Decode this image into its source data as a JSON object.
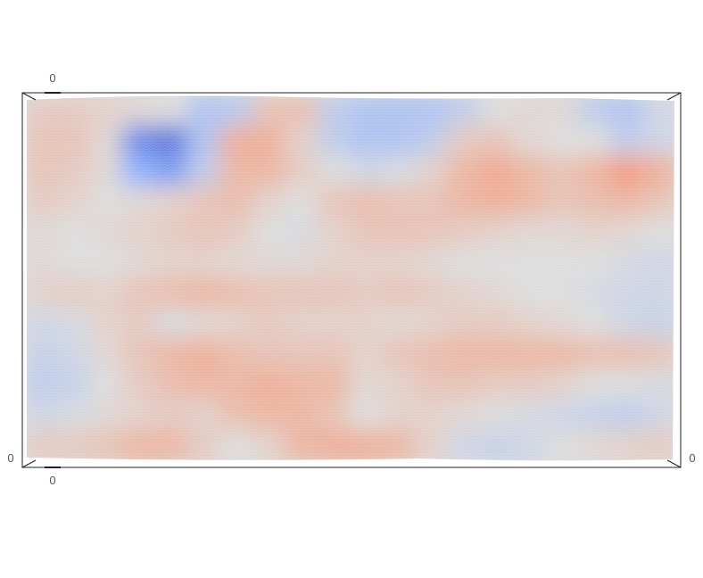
{
  "chart_data": {
    "type": "heatmap",
    "title": "",
    "colormap": "coolwarm",
    "colormap_stops": [
      "#3b4cc0",
      "#8db0fe",
      "#dddddd",
      "#f49a7b",
      "#b40426"
    ],
    "grid": false,
    "legend": "none",
    "projection": "3d-box",
    "tick_labels": {
      "top": "0",
      "bottom": "0",
      "left": "0",
      "right": "0"
    },
    "rows": 12,
    "cols": 20,
    "value_range": [
      -1,
      1
    ],
    "values": [
      [
        0.15,
        0.15,
        0.1,
        0.05,
        0.0,
        -0.3,
        -0.25,
        0.2,
        0.25,
        -0.2,
        -0.3,
        -0.3,
        -0.3,
        -0.2,
        0.0,
        0.05,
        0.05,
        -0.2,
        -0.3,
        -0.1
      ],
      [
        0.2,
        0.2,
        0.05,
        -0.7,
        -0.8,
        -0.3,
        0.35,
        0.35,
        0.1,
        -0.2,
        -0.3,
        -0.3,
        -0.2,
        0.15,
        0.2,
        0.05,
        0.0,
        0.0,
        -0.2,
        -0.1
      ],
      [
        0.2,
        0.15,
        0.05,
        -0.5,
        -0.6,
        -0.2,
        0.3,
        0.3,
        0.15,
        0.0,
        -0.1,
        -0.05,
        0.1,
        0.3,
        0.4,
        0.3,
        0.2,
        0.3,
        0.5,
        0.35
      ],
      [
        0.15,
        0.1,
        0.0,
        0.05,
        0.1,
        0.2,
        0.25,
        0.1,
        0.0,
        0.2,
        0.25,
        0.2,
        0.2,
        0.3,
        0.35,
        0.3,
        0.2,
        0.25,
        0.3,
        0.2
      ],
      [
        0.05,
        0.0,
        0.05,
        0.1,
        0.15,
        0.2,
        0.15,
        0.0,
        -0.05,
        0.1,
        0.2,
        0.2,
        0.2,
        0.15,
        0.1,
        0.05,
        0.05,
        0.1,
        0.05,
        0.0
      ],
      [
        0.05,
        0.0,
        0.0,
        0.05,
        0.1,
        0.1,
        0.05,
        0.05,
        0.05,
        0.1,
        0.1,
        0.1,
        0.05,
        0.0,
        0.0,
        0.0,
        0.0,
        0.0,
        -0.05,
        -0.1
      ],
      [
        0.1,
        0.15,
        0.1,
        0.2,
        0.25,
        0.3,
        0.25,
        0.2,
        0.2,
        0.2,
        0.15,
        0.2,
        0.15,
        0.1,
        0.05,
        0.0,
        0.0,
        -0.05,
        -0.1,
        -0.1
      ],
      [
        -0.1,
        -0.05,
        0.1,
        0.15,
        -0.05,
        0.05,
        0.1,
        0.15,
        0.1,
        0.1,
        0.1,
        0.05,
        0.1,
        0.15,
        0.15,
        0.1,
        0.05,
        0.0,
        -0.1,
        -0.15
      ],
      [
        -0.15,
        -0.1,
        0.05,
        0.2,
        0.3,
        0.35,
        0.25,
        0.2,
        0.2,
        0.2,
        0.1,
        0.2,
        0.25,
        0.3,
        0.3,
        0.3,
        0.3,
        0.25,
        0.25,
        0.2
      ],
      [
        -0.2,
        -0.15,
        0.0,
        0.15,
        0.25,
        0.3,
        0.3,
        0.35,
        0.3,
        0.3,
        0.05,
        0.1,
        0.2,
        0.2,
        0.15,
        0.15,
        0.1,
        0.0,
        0.0,
        -0.05
      ],
      [
        -0.1,
        -0.05,
        0.05,
        0.1,
        0.15,
        0.1,
        0.25,
        0.3,
        0.3,
        0.2,
        0.0,
        0.1,
        0.1,
        0.05,
        0.0,
        -0.05,
        -0.1,
        -0.15,
        -0.2,
        -0.1
      ],
      [
        0.15,
        0.15,
        0.2,
        0.3,
        0.3,
        0.15,
        0.0,
        0.1,
        0.3,
        0.35,
        0.35,
        0.3,
        0.1,
        -0.1,
        -0.15,
        -0.1,
        0.0,
        0.05,
        0.1,
        0.15
      ]
    ]
  }
}
